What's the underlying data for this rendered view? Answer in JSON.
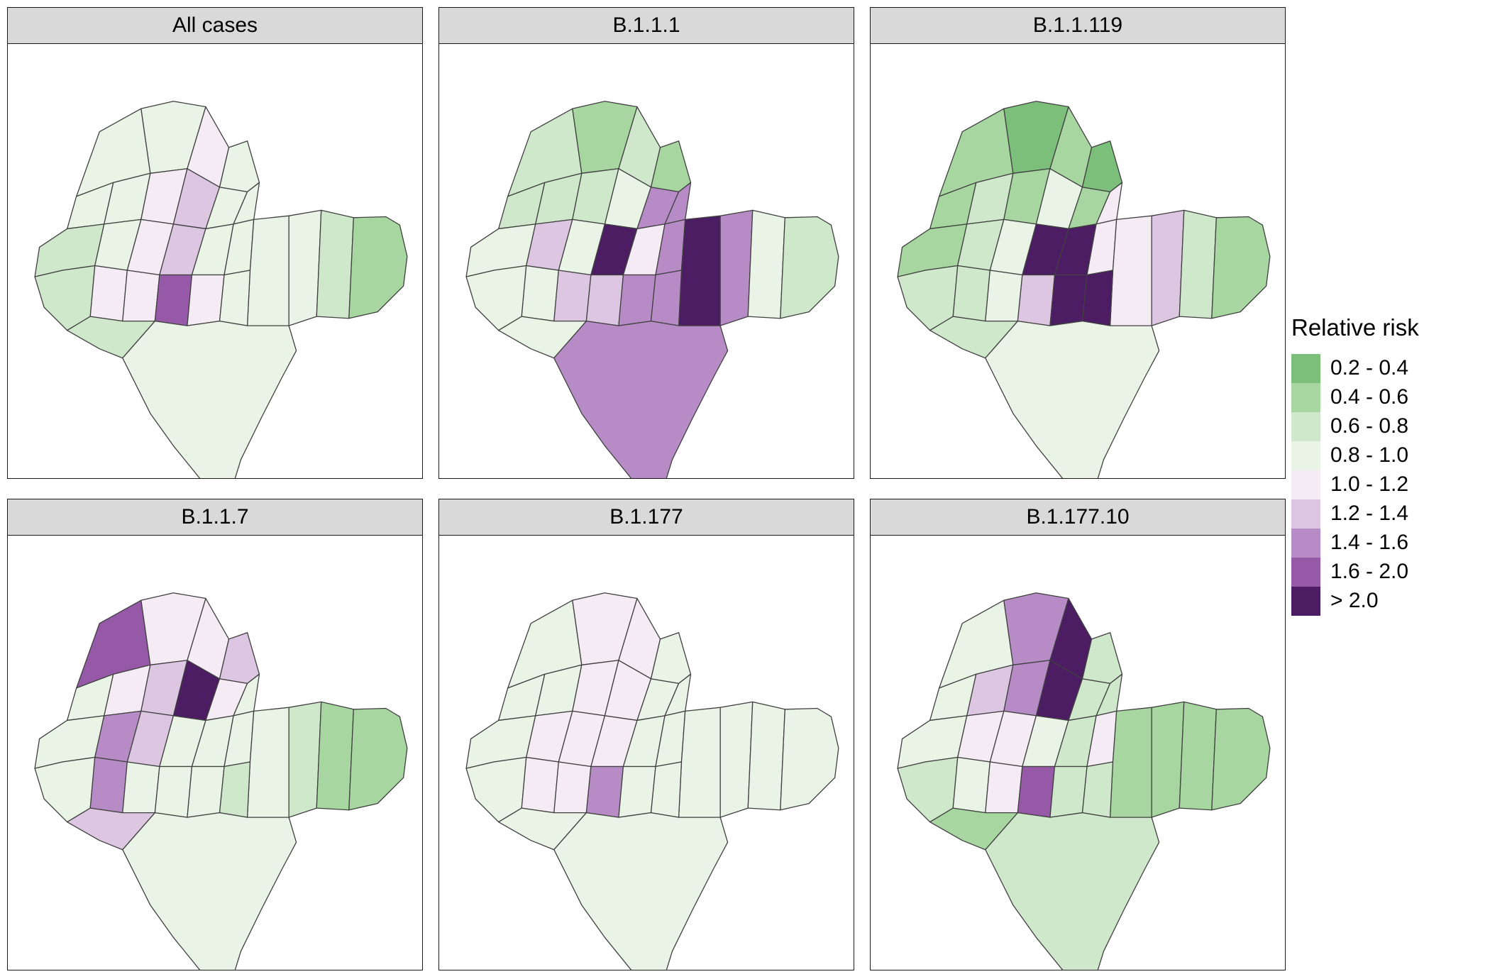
{
  "chart_data": {
    "type": "heatmap",
    "subtype": "faceted_choropleth_map",
    "title": "",
    "legend_title": "Relative risk",
    "legend_position": "right",
    "bins": [
      "0.2 - 0.4",
      "0.4 - 0.6",
      "0.6 - 0.8",
      "0.8 - 1.0",
      "1.0 - 1.2",
      "1.2 - 1.4",
      "1.4 - 1.6",
      "1.6 - 2.0",
      "> 2.0"
    ],
    "bin_colors": [
      "#7CBF7B",
      "#A7D6A1",
      "#CFE8CB",
      "#E9F3E6",
      "#F4EBF4",
      "#DCC6E1",
      "#B78CC6",
      "#9659A7",
      "#4C1D62"
    ],
    "strip_fill": "#D9D9D9",
    "panel_border": "#1A1A1A",
    "boundary_color": "#404040",
    "n_districts": 28,
    "facets": [
      {
        "label": "All cases",
        "district_bins": [
          3,
          3,
          4,
          3,
          3,
          3,
          4,
          5,
          3,
          3,
          2,
          3,
          4,
          5,
          3,
          3,
          3,
          3,
          2,
          1,
          2,
          4,
          4,
          7,
          4,
          3,
          2,
          3
        ]
      },
      {
        "label": "B.1.1.1",
        "district_bins": [
          2,
          1,
          2,
          1,
          2,
          2,
          2,
          3,
          6,
          6,
          3,
          5,
          3,
          8,
          4,
          6,
          8,
          6,
          3,
          2,
          3,
          3,
          5,
          5,
          6,
          6,
          3,
          6
        ]
      },
      {
        "label": "B.1.1.119",
        "district_bins": [
          1,
          0,
          1,
          0,
          1,
          2,
          1,
          3,
          1,
          4,
          1,
          2,
          3,
          8,
          8,
          4,
          4,
          5,
          2,
          1,
          2,
          2,
          3,
          5,
          8,
          8,
          2,
          3
        ]
      },
      {
        "label": "B.1.1.7",
        "district_bins": [
          7,
          4,
          4,
          5,
          3,
          4,
          5,
          8,
          4,
          3,
          3,
          6,
          5,
          3,
          3,
          3,
          3,
          2,
          1,
          1,
          3,
          6,
          3,
          3,
          3,
          2,
          5,
          3
        ]
      },
      {
        "label": "B.1.177",
        "district_bins": [
          3,
          4,
          4,
          3,
          3,
          3,
          4,
          4,
          3,
          3,
          3,
          4,
          4,
          4,
          3,
          3,
          3,
          3,
          3,
          3,
          3,
          4,
          4,
          6,
          3,
          3,
          3,
          3
        ]
      },
      {
        "label": "B.1.177.10",
        "district_bins": [
          3,
          6,
          8,
          2,
          3,
          5,
          6,
          8,
          2,
          2,
          3,
          4,
          4,
          3,
          2,
          4,
          1,
          1,
          1,
          1,
          2,
          3,
          4,
          7,
          2,
          2,
          1,
          2
        ]
      }
    ]
  }
}
